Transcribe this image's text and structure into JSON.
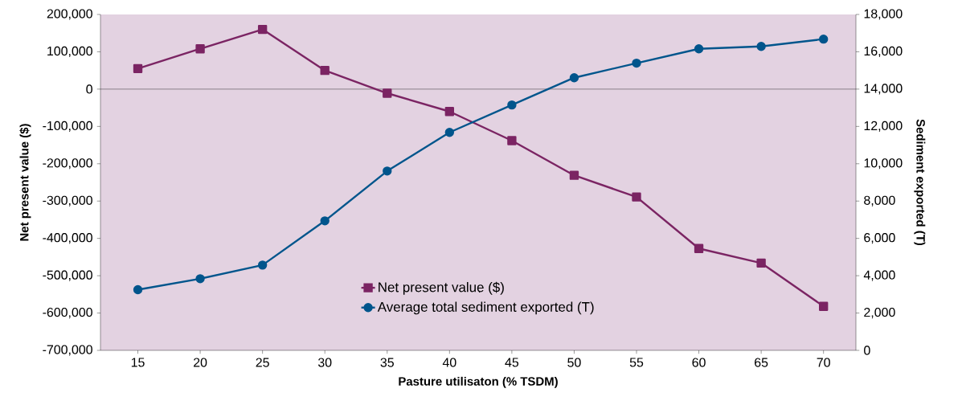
{
  "chart_data": {
    "type": "line",
    "xlabel": "Pasture utilisaton (% TSDM)",
    "ylabel": "Net present value ($)",
    "y2label": "Sediment exported (T)",
    "categories": [
      "15",
      "20",
      "25",
      "30",
      "35",
      "40",
      "45",
      "50",
      "55",
      "60",
      "65",
      "70"
    ],
    "series": [
      {
        "name": "Net present value ($)",
        "color": "#7b2463",
        "marker": "square",
        "values": [
          55000,
          108000,
          160000,
          50000,
          -11000,
          -60000,
          -138000,
          -231000,
          -289000,
          -427000,
          -466000,
          -582000
        ]
      },
      {
        "name": "Average total sediment exported (T)",
        "color": "#00558c",
        "marker": "circle",
        "axis": "y2",
        "values": [
          3250,
          3840,
          4570,
          6940,
          9610,
          11680,
          13150,
          14610,
          15390,
          16160,
          16290,
          16680
        ]
      }
    ],
    "ylim": [
      -700000,
      200000
    ],
    "yticks": [
      {
        "value": -700000,
        "label": "-700,000"
      },
      {
        "value": -600000,
        "label": "-600,000"
      },
      {
        "value": -500000,
        "label": "-500,000"
      },
      {
        "value": -400000,
        "label": "-400,000"
      },
      {
        "value": -300000,
        "label": "-300,000"
      },
      {
        "value": -200000,
        "label": "-200,000"
      },
      {
        "value": -100000,
        "label": "-100,000"
      },
      0,
      {
        "value": 100000,
        "label": "100,000"
      },
      {
        "value": 200000,
        "label": "200,000"
      }
    ],
    "y2lim": [
      0,
      18000
    ],
    "y2ticks": [
      0,
      {
        "value": 2000,
        "label": "2,000"
      },
      {
        "value": 4000,
        "label": "4,000"
      },
      {
        "value": 6000,
        "label": "6,000"
      },
      {
        "value": 8000,
        "label": "8,000"
      },
      {
        "value": 10000,
        "label": "10,000"
      },
      {
        "value": 12000,
        "label": "12,000"
      },
      {
        "value": 14000,
        "label": "14,000"
      },
      {
        "value": 16000,
        "label": "16,000"
      },
      {
        "value": 18000,
        "label": "18,000"
      }
    ],
    "ref_lines": [
      {
        "axis": "y",
        "value": 0,
        "color": "#000000"
      }
    ],
    "legend": "bottom",
    "grid": false
  }
}
